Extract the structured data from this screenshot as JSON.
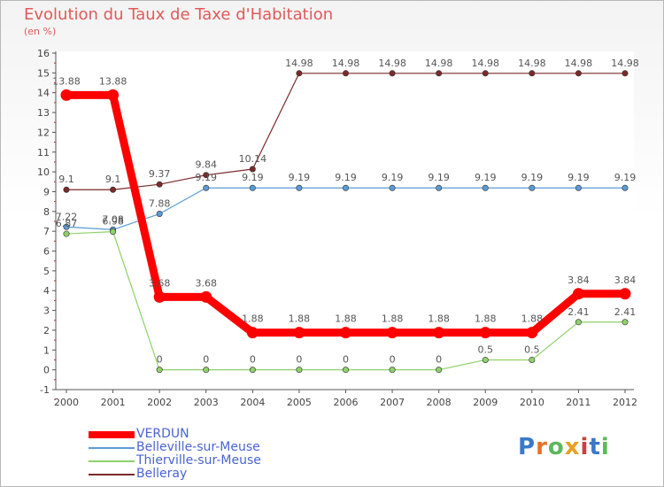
{
  "title": "Evolution du Taux de Taxe d'Habitation",
  "subtitle": "(en %)",
  "logo": {
    "text": "Proxiti",
    "colors": [
      "#3a78c8",
      "#e8702a",
      "#5cb85c",
      "#e8a020",
      "#d23c3c",
      "#3a78c8",
      "#5cb85c"
    ]
  },
  "chart_data": {
    "type": "line",
    "x": [
      "2000",
      "2001",
      "2002",
      "2003",
      "2004",
      "2005",
      "2006",
      "2007",
      "2008",
      "2009",
      "2010",
      "2011",
      "2012"
    ],
    "ylim": [
      -1,
      16
    ],
    "yticks": [
      -1,
      0,
      1,
      2,
      3,
      4,
      5,
      6,
      7,
      8,
      9,
      10,
      11,
      12,
      13,
      14,
      15,
      16
    ],
    "grid": false,
    "legend_position": "bottom-left",
    "series": [
      {
        "name": "Belleray",
        "color": "#7b2a2a",
        "values": [
          9.1,
          9.1,
          9.37,
          9.84,
          10.14,
          14.98,
          14.98,
          14.98,
          14.98,
          14.98,
          14.98,
          14.98,
          14.98
        ],
        "labels": [
          "9.1",
          "9.1",
          "9.37",
          "9.84",
          "10.14",
          "14.98",
          "14.98",
          "14.98",
          "14.98",
          "14.98",
          "14.98",
          "14.98",
          "14.98"
        ]
      },
      {
        "name": "Belleville-sur-Meuse",
        "color": "#5b9bd5",
        "values": [
          7.22,
          7.08,
          7.88,
          9.19,
          9.19,
          9.19,
          9.19,
          9.19,
          9.19,
          9.19,
          9.19,
          9.19,
          9.19
        ],
        "labels": [
          "7.22",
          "7.08",
          "7.88",
          "9.19",
          "9.19",
          "9.19",
          "9.19",
          "9.19",
          "9.19",
          "9.19",
          "9.19",
          "9.19",
          "9.19"
        ]
      },
      {
        "name": "Thierville-sur-Meuse",
        "color": "#8fd16a",
        "values": [
          6.87,
          6.98,
          0,
          0,
          0,
          0,
          0,
          0,
          0,
          0.5,
          0.5,
          2.41,
          2.41
        ],
        "labels": [
          "6.87",
          "6.98",
          "0",
          "0",
          "0",
          "0",
          "0",
          "0",
          "0",
          "0.5",
          "0.5",
          "2.41",
          "2.41"
        ]
      },
      {
        "name": "VERDUN",
        "color": "#ff0000",
        "values": [
          13.88,
          13.88,
          3.68,
          3.68,
          1.88,
          1.88,
          1.88,
          1.88,
          1.88,
          1.88,
          1.88,
          3.84,
          3.84
        ],
        "labels": [
          "13.88",
          "13.88",
          "3.68",
          "3.68",
          "1.88",
          "1.88",
          "1.88",
          "1.88",
          "1.88",
          "1.88",
          "1.88",
          "3.84",
          "3.84"
        ]
      }
    ],
    "legend": [
      "VERDUN",
      "Belleville-sur-Meuse",
      "Thierville-sur-Meuse",
      "Belleray"
    ]
  }
}
